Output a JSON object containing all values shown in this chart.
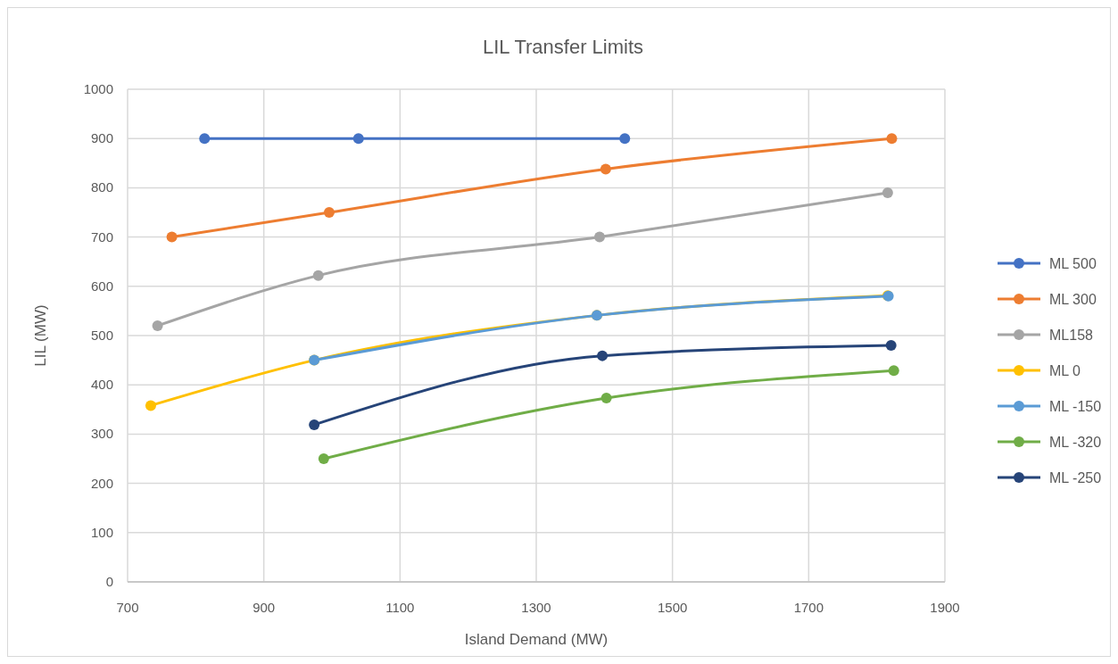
{
  "chart_data": {
    "type": "line",
    "title": "LIL Transfer  Limits",
    "xlabel": "Island Demand (MW)",
    "ylabel": "LIL (MW)",
    "xlim": [
      700,
      1900
    ],
    "xticks": [
      700,
      900,
      1100,
      1300,
      1500,
      1700,
      1900
    ],
    "ylim": [
      0,
      1000
    ],
    "yticks": [
      0,
      100,
      200,
      300,
      400,
      500,
      600,
      700,
      800,
      900,
      1000
    ],
    "grid": true,
    "legend": "right",
    "marker": "circle",
    "line_style": "solid",
    "series": [
      {
        "name": "ML 500",
        "color": "#4472c4",
        "x": [
          813,
          1039,
          1430
        ],
        "values": [
          900,
          900,
          900
        ]
      },
      {
        "name": "ML 300",
        "color": "#ed7d31",
        "x": [
          765,
          996,
          1402,
          1822
        ],
        "values": [
          700,
          750,
          838,
          900
        ]
      },
      {
        "name": "ML158",
        "color": "#a5a5a5",
        "x": [
          744,
          980,
          1393,
          1816
        ],
        "values": [
          520,
          622,
          700,
          790
        ]
      },
      {
        "name": "ML 0",
        "color": "#ffc000",
        "x": [
          734,
          974,
          1389,
          1816
        ],
        "values": [
          358,
          450,
          541,
          581
        ]
      },
      {
        "name": "ML -150",
        "color": "#5b9bd5",
        "x": [
          974,
          1389,
          1817
        ],
        "values": [
          450,
          541,
          580
        ]
      },
      {
        "name": "ML -320",
        "color": "#70ad47",
        "x": [
          988,
          1403,
          1825
        ],
        "values": [
          250,
          373,
          429
        ]
      },
      {
        "name": "ML -250",
        "color": "#264478",
        "x": [
          974,
          1397,
          1821
        ],
        "values": [
          319,
          459,
          480
        ]
      }
    ]
  }
}
